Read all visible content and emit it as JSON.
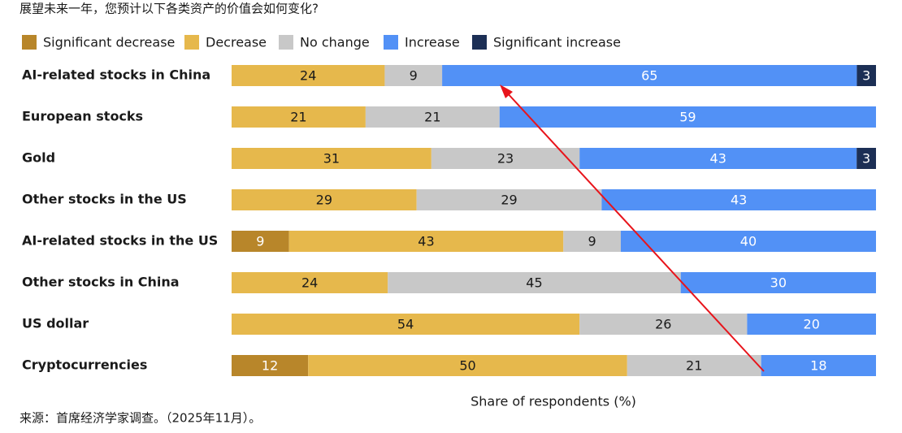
{
  "chart_data": {
    "type": "bar",
    "orientation": "horizontal",
    "stacked": true,
    "title": "展望未来一年，您预计以下各类资产的价值会如何变化?",
    "xlabel": "Share of respondents (%)",
    "source": "来源：首席经济学家调查。（2025年11月）。",
    "categories": [
      "AI-related stocks in China",
      "European stocks",
      "Gold",
      "Other stocks in the US",
      "AI-related stocks in the US",
      "Other stocks in China",
      "US dollar",
      "Cryptocurrencies"
    ],
    "series": [
      {
        "name": "Significant decrease",
        "color": "#b8862a",
        "values": [
          null,
          null,
          null,
          null,
          9,
          null,
          null,
          12
        ]
      },
      {
        "name": "Decrease",
        "color": "#e6b84c",
        "values": [
          24,
          21,
          31,
          29,
          43,
          24,
          54,
          50
        ]
      },
      {
        "name": "No change",
        "color": "#c8c8c8",
        "values": [
          9,
          21,
          23,
          29,
          9,
          45,
          26,
          21
        ]
      },
      {
        "name": "Increase",
        "color": "#5291f6",
        "values": [
          65,
          59,
          43,
          43,
          40,
          30,
          20,
          18
        ]
      },
      {
        "name": "Significant increase",
        "color": "#1c2f55",
        "values": [
          3,
          null,
          3,
          null,
          null,
          null,
          null,
          null
        ]
      }
    ],
    "legend": "top"
  }
}
